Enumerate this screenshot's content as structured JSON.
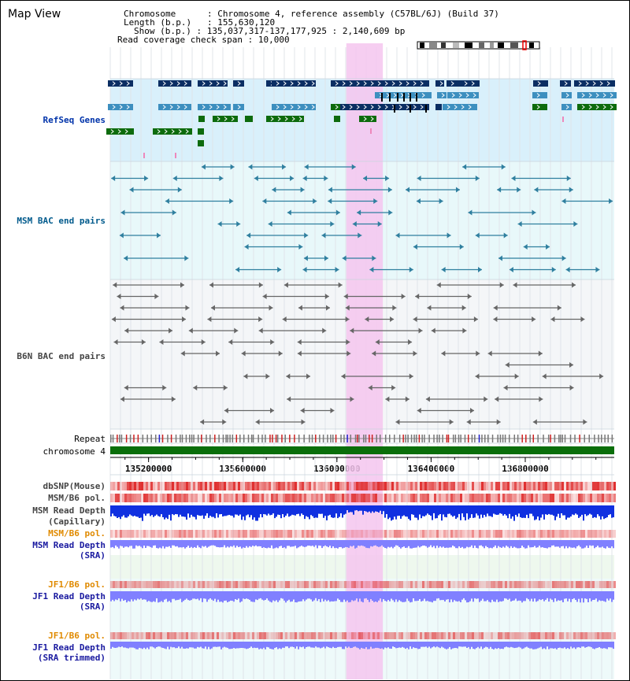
{
  "window": {
    "title": "Map View"
  },
  "header": {
    "chromosome_label": "Chromosome",
    "chromosome_value": "Chromosome 4, reference assembly (C57BL/6J) (Build 37)",
    "length_label": "Length (b.p.)",
    "length_value": "155,630,120",
    "show_label": "Show (b.p.)",
    "show_value": "135,037,317-137,177,925 : 2,140,609 bp",
    "span_label": "Read coverage check span",
    "span_value": "10,000"
  },
  "tracks": {
    "refseq": "RefSeq Genes",
    "msm_bac": "MSM BAC end pairs",
    "b6n_bac": "B6N BAC end pairs",
    "repeat": "Repeat",
    "chromosome": "chromosome 4",
    "dbsnp": "dbSNP(Mouse)",
    "msm_b6_pol_1": "MSM/B6 pol.",
    "msm_depth_cap_1": "MSM Read Depth",
    "msm_depth_cap_2": "(Capillary)",
    "msm_b6_pol_2": "MSM/B6 pol.",
    "msm_depth_sra_1": "MSM Read Depth",
    "msm_depth_sra_2": "(SRA)",
    "jf1_b6_pol_1": "JF1/B6 pol.",
    "jf1_depth_sra_1": "JF1 Read Depth",
    "jf1_depth_sra_2": "(SRA)",
    "jf1_b6_pol_2": "JF1/B6 pol.",
    "jf1_depth_trim_1": "JF1 Read Depth",
    "jf1_depth_trim_2": "(SRA trimmed)"
  },
  "axis": {
    "ticks": [
      "135200000",
      "135600000",
      "136000000",
      "136400000",
      "136800000"
    ],
    "tick_values": [
      135200000,
      135600000,
      136000000,
      136400000,
      136800000
    ],
    "range_start": 135037317,
    "range_end": 137177925
  },
  "highlight": {
    "start": 136040000,
    "end": 136195000,
    "color": "#f4c6ee"
  },
  "colors": {
    "refseq_bg": "#d9f0fb",
    "msm_bg": "#e8f8fa",
    "b6n_bg": "#f4f6f8",
    "gene_navy": "#0b2e63",
    "gene_blue": "#3d8fbf",
    "gene_green": "#0d6b0d",
    "bac_teal": "#2f7f9f",
    "bac_gray": "#666666",
    "chrom_green": "#0a6e0a",
    "depth_blue": "#1030e0",
    "depth_light": "#8080ff",
    "snp_red": "#e03030"
  }
}
